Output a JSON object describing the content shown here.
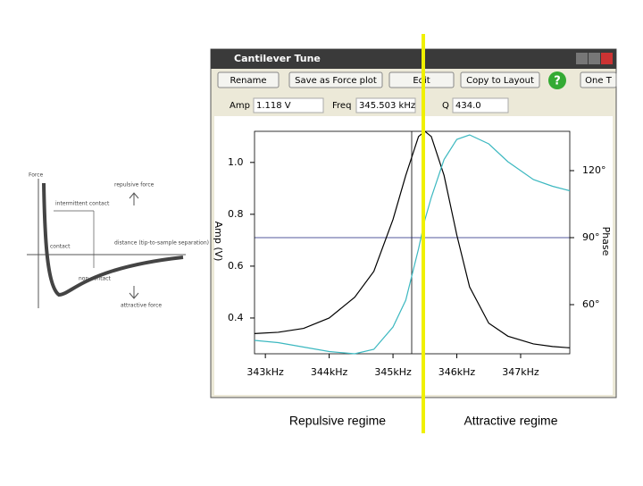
{
  "window": {
    "title": "Cantilever Tune",
    "buttons": [
      "Rename",
      "Save as Force plot",
      "Edit",
      "Copy to Layout",
      "One T"
    ],
    "fields": [
      {
        "label": "Amp",
        "value": "1.118 V"
      },
      {
        "label": "Freq",
        "value": "345.503 kHz"
      },
      {
        "label": "Q",
        "value": "434.0"
      }
    ]
  },
  "diagram": {
    "force": "Force",
    "intermittent": "intermittent contact",
    "repulsive": "repulsive force",
    "distance": "distance (tip-to-sample separation)",
    "contact": "contact",
    "noncontact": "non-contact",
    "attractive": "attractive force"
  },
  "captions": [
    "Repulsive regime",
    "Attractive regime"
  ],
  "chart_data": {
    "type": "line",
    "ylabel": "Amp (V)",
    "y2label": "Phase",
    "x": [
      342.83,
      343.2,
      343.6,
      344,
      344.4,
      344.7,
      345,
      345.2,
      345.4,
      345.5,
      345.6,
      345.8,
      346,
      346.2,
      346.5,
      346.8,
      347.2,
      347.5,
      347.77
    ],
    "series": [
      {
        "name": "Amp",
        "color": "#000000",
        "values": [
          0.34,
          0.345,
          0.36,
          0.4,
          0.48,
          0.58,
          0.78,
          0.95,
          1.1,
          1.12,
          1.1,
          0.95,
          0.72,
          0.52,
          0.38,
          0.33,
          0.3,
          0.29,
          0.285
        ]
      },
      {
        "name": "Phase",
        "color": "#3cb8c0",
        "axis": "y2",
        "values": [
          44,
          43,
          41,
          39,
          38,
          40,
          50,
          62,
          85,
          98,
          108,
          125,
          134,
          136,
          132,
          124,
          116,
          113,
          111
        ]
      }
    ],
    "xlim": [
      342.83,
      347.77
    ],
    "ylim": [
      0.262,
      1.12
    ],
    "y2lim": [
      38,
      137.6
    ],
    "xticks": [
      {
        "value": 343,
        "label": "343kHz"
      },
      {
        "value": 344,
        "label": "344kHz"
      },
      {
        "value": 345,
        "label": "345kHz"
      },
      {
        "value": 346,
        "label": "346kHz"
      },
      {
        "value": 347,
        "label": "347kHz"
      }
    ],
    "yticks": [
      0.4,
      0.6,
      0.8,
      {
        "value": 1,
        "label": "1.0"
      }
    ],
    "y2ticks": [
      {
        "value": 60,
        "label": "60°"
      },
      {
        "value": 90,
        "label": "90°"
      },
      {
        "value": 120,
        "label": "120°"
      }
    ]
  }
}
